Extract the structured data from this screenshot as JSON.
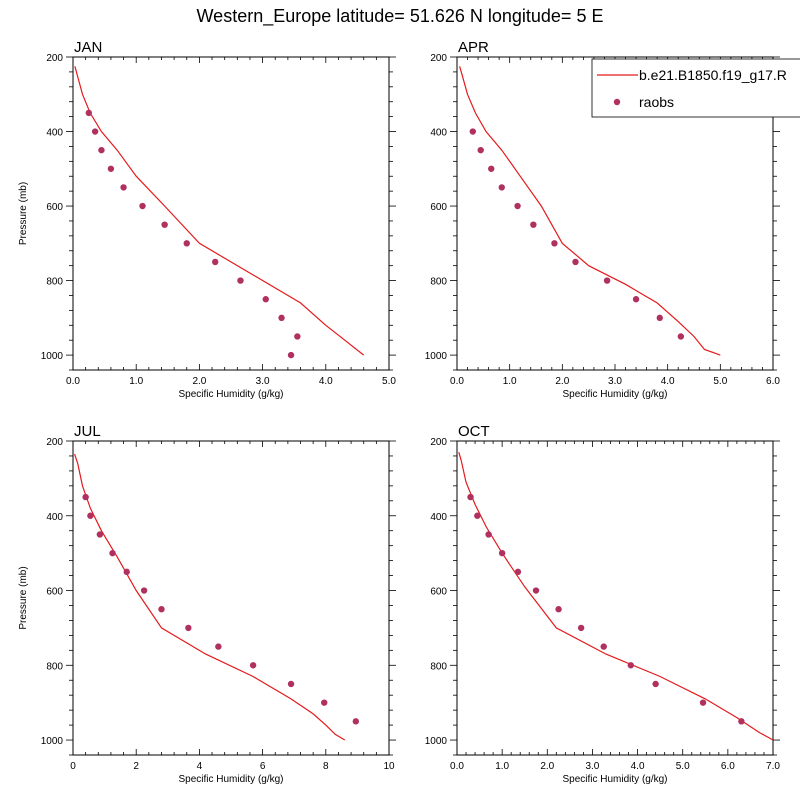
{
  "figure_title": "Western_Europe  latitude= 51.626 N longitude= 5 E",
  "legend": {
    "entries": [
      {
        "label": "b.e21.B1850.f19_g17.R",
        "kind": "line",
        "color": "#e41a1c"
      },
      {
        "label": "raobs",
        "kind": "marker",
        "color": "#b03060"
      }
    ]
  },
  "colors": {
    "model_line": "#e41a1c",
    "raobs_marker": "#b03060"
  },
  "chart_data": [
    {
      "type": "line",
      "title": "JAN",
      "xlabel": "Specific Humidity (g/kg)",
      "ylabel": "Pressure (mb)",
      "xlim": [
        0,
        5
      ],
      "ylim": [
        200,
        1040
      ],
      "y_inverted": true,
      "xticks": [
        "0.0",
        "1.0",
        "2.0",
        "3.0",
        "4.0",
        "5.0"
      ],
      "xtick_values": [
        0,
        1,
        2,
        3,
        4,
        5
      ],
      "yticks": [
        "200",
        "400",
        "600",
        "800",
        "1000"
      ],
      "ytick_values": [
        200,
        400,
        600,
        800,
        1000
      ],
      "series": [
        {
          "name": "b.e21.B1850.f19_g17.R",
          "kind": "line",
          "x": [
            0.03,
            0.07,
            0.15,
            0.27,
            0.45,
            0.7,
            1.0,
            1.45,
            2.0,
            2.8,
            3.6,
            4.0,
            4.3,
            4.6
          ],
          "y": [
            225,
            250,
            300,
            350,
            400,
            450,
            520,
            600,
            700,
            780,
            860,
            920,
            960,
            1000
          ]
        },
        {
          "name": "raobs",
          "kind": "scatter",
          "x": [
            0.25,
            0.35,
            0.45,
            0.6,
            0.8,
            1.1,
            1.45,
            1.8,
            2.25,
            2.65,
            3.05,
            3.3,
            3.55,
            3.45
          ],
          "y": [
            350,
            400,
            450,
            500,
            550,
            600,
            650,
            700,
            750,
            800,
            850,
            900,
            950,
            1000
          ]
        }
      ]
    },
    {
      "type": "line",
      "title": "APR",
      "xlabel": "Specific Humidity (g/kg)",
      "ylabel": "",
      "xlim": [
        0,
        6
      ],
      "ylim": [
        200,
        1040
      ],
      "y_inverted": true,
      "xticks": [
        "0.0",
        "1.0",
        "2.0",
        "3.0",
        "4.0",
        "5.0",
        "6.0"
      ],
      "xtick_values": [
        0,
        1,
        2,
        3,
        4,
        5,
        6
      ],
      "yticks": [
        "200",
        "400",
        "600",
        "800",
        "1000"
      ],
      "ytick_values": [
        200,
        400,
        600,
        800,
        1000
      ],
      "series": [
        {
          "name": "b.e21.B1850.f19_g17.R",
          "kind": "line",
          "x": [
            0.05,
            0.1,
            0.2,
            0.35,
            0.55,
            0.85,
            1.2,
            1.6,
            2.0,
            2.5,
            3.2,
            3.8,
            4.2,
            4.5,
            4.7,
            5.0
          ],
          "y": [
            225,
            250,
            300,
            350,
            400,
            450,
            520,
            600,
            700,
            760,
            810,
            860,
            910,
            950,
            985,
            1000
          ]
        },
        {
          "name": "raobs",
          "kind": "scatter",
          "x": [
            0.3,
            0.45,
            0.65,
            0.85,
            1.15,
            1.45,
            1.85,
            2.25,
            2.85,
            3.4,
            3.85,
            4.25
          ],
          "y": [
            400,
            450,
            500,
            550,
            600,
            650,
            700,
            750,
            800,
            850,
            900,
            950
          ]
        }
      ]
    },
    {
      "type": "line",
      "title": "JUL",
      "xlabel": "Specific Humidity (g/kg)",
      "ylabel": "Pressure (mb)",
      "xlim": [
        0,
        10
      ],
      "ylim": [
        200,
        1040
      ],
      "y_inverted": true,
      "xticks": [
        "0",
        "2",
        "4",
        "6",
        "8",
        "10"
      ],
      "xtick_values": [
        0,
        2,
        4,
        6,
        8,
        10
      ],
      "yticks": [
        "200",
        "400",
        "600",
        "800",
        "1000"
      ],
      "ytick_values": [
        200,
        400,
        600,
        800,
        1000
      ],
      "series": [
        {
          "name": "b.e21.B1850.f19_g17.R",
          "kind": "line",
          "x": [
            0.05,
            0.15,
            0.3,
            0.55,
            0.9,
            1.4,
            2.0,
            2.8,
            4.2,
            5.7,
            6.9,
            7.6,
            8.0,
            8.3,
            8.6
          ],
          "y": [
            235,
            260,
            320,
            380,
            440,
            510,
            600,
            700,
            770,
            830,
            890,
            930,
            960,
            985,
            1000
          ]
        },
        {
          "name": "raobs",
          "kind": "scatter",
          "x": [
            0.4,
            0.55,
            0.85,
            1.25,
            1.7,
            2.25,
            2.8,
            3.65,
            4.6,
            5.7,
            6.9,
            7.95,
            8.95
          ],
          "y": [
            350,
            400,
            450,
            500,
            550,
            600,
            650,
            700,
            750,
            800,
            850,
            900,
            950
          ]
        }
      ]
    },
    {
      "type": "line",
      "title": "OCT",
      "xlabel": "Specific Humidity (g/kg)",
      "ylabel": "",
      "xlim": [
        0,
        7
      ],
      "ylim": [
        200,
        1040
      ],
      "y_inverted": true,
      "xticks": [
        "0.0",
        "1.0",
        "2.0",
        "3.0",
        "4.0",
        "5.0",
        "6.0",
        "7.0"
      ],
      "xtick_values": [
        0,
        1,
        2,
        3,
        4,
        5,
        6,
        7
      ],
      "yticks": [
        "200",
        "400",
        "600",
        "800",
        "1000"
      ],
      "ytick_values": [
        200,
        400,
        600,
        800,
        1000
      ],
      "series": [
        {
          "name": "b.e21.B1850.f19_g17.R",
          "kind": "line",
          "x": [
            0.04,
            0.1,
            0.2,
            0.4,
            0.65,
            1.0,
            1.5,
            2.2,
            3.3,
            4.5,
            5.5,
            6.2,
            6.7,
            7.0
          ],
          "y": [
            230,
            255,
            310,
            370,
            430,
            500,
            590,
            700,
            770,
            830,
            890,
            940,
            980,
            1000
          ]
        },
        {
          "name": "raobs",
          "kind": "scatter",
          "x": [
            0.3,
            0.45,
            0.7,
            1.0,
            1.35,
            1.75,
            2.25,
            2.75,
            3.25,
            3.85,
            4.4,
            5.45,
            6.3
          ],
          "y": [
            350,
            400,
            450,
            500,
            550,
            600,
            650,
            700,
            750,
            800,
            850,
            900,
            950
          ]
        }
      ]
    }
  ]
}
